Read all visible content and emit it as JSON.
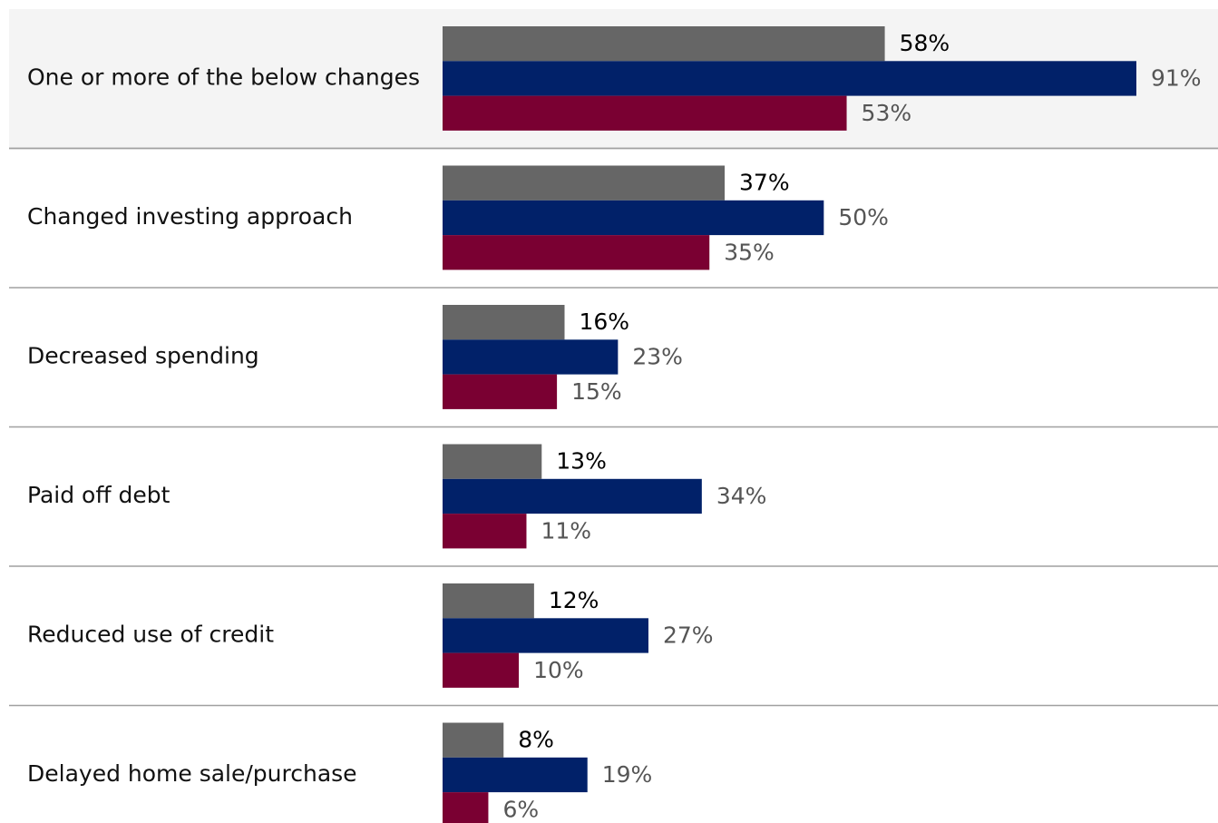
{
  "chart_data": {
    "type": "bar",
    "orientation": "horizontal",
    "categories": [
      "One or more of the below changes",
      "Changed investing approach",
      "Decreased spending",
      "Paid off debt",
      "Reduced use of credit",
      "Delayed home sale/purchase"
    ],
    "series": [
      {
        "values": [
          58,
          37,
          16,
          13,
          12,
          8
        ],
        "labels": [
          "58%",
          "37%",
          "16%",
          "13%",
          "12%",
          "8%"
        ],
        "color": "#666666",
        "label_color": "#000000"
      },
      {
        "values": [
          91,
          50,
          23,
          34,
          27,
          19
        ],
        "labels": [
          "91%",
          "50%",
          "23%",
          "34%",
          "27%",
          "19%"
        ],
        "color": "#012169",
        "label_color": "#555555"
      },
      {
        "values": [
          53,
          35,
          15,
          11,
          10,
          6
        ],
        "labels": [
          "53%",
          "35%",
          "15%",
          "11%",
          "10%",
          "6%"
        ],
        "color": "#7a0032",
        "label_color": "#555555"
      }
    ],
    "xlim": [
      0,
      100
    ],
    "grid": false,
    "legend": "none",
    "highlighted_category": "One or more of the below changes",
    "highlight_color": "#f4f4f4",
    "separator_color": "#a0a0a0"
  }
}
